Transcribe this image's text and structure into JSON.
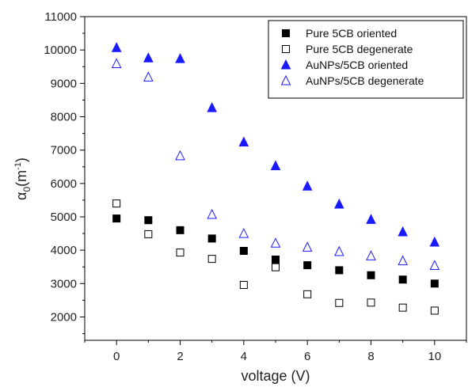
{
  "chart_data": {
    "type": "scatter",
    "title": "",
    "xlabel": "voltage (V)",
    "ylabel": {
      "alpha": "α",
      "sub": "0",
      "open": "(m",
      "sup": "-1",
      "close": ")"
    },
    "xlim": [
      -1,
      11
    ],
    "ylim": [
      1300,
      11000
    ],
    "x_ticks": [
      0,
      2,
      4,
      6,
      8,
      10
    ],
    "y_ticks": [
      2000,
      3000,
      4000,
      5000,
      6000,
      7000,
      8000,
      9000,
      10000,
      11000
    ],
    "grid": false,
    "legend_position": "top-right",
    "series": [
      {
        "name": "Pure 5CB oriented",
        "marker": "square-filled",
        "color": "#000000",
        "x": [
          0,
          1,
          2,
          3,
          4,
          5,
          6,
          7,
          8,
          9,
          10
        ],
        "y": [
          4950,
          4900,
          4600,
          4350,
          3980,
          3720,
          3550,
          3400,
          3250,
          3120,
          3000
        ]
      },
      {
        "name": "Pure 5CB degenerate",
        "marker": "square-open",
        "color": "#000000",
        "x": [
          0,
          1,
          2,
          3,
          4,
          5,
          6,
          7,
          8,
          9,
          10
        ],
        "y": [
          5400,
          4480,
          3930,
          3740,
          2960,
          3490,
          2680,
          2420,
          2430,
          2280,
          2190
        ]
      },
      {
        "name": "AuNPs/5CB oriented",
        "marker": "triangle-filled",
        "color": "#1a1aff",
        "x": [
          0,
          1,
          2,
          3,
          4,
          5,
          6,
          7,
          8,
          9,
          10
        ],
        "y": [
          10070,
          9760,
          9740,
          8270,
          7240,
          6530,
          5920,
          5380,
          4920,
          4550,
          4240
        ]
      },
      {
        "name": "AuNPs/5CB degenerate",
        "marker": "triangle-open",
        "color": "#1a1aff",
        "x": [
          0,
          1,
          2,
          3,
          4,
          5,
          6,
          7,
          8,
          9,
          10
        ],
        "y": [
          9590,
          9190,
          6830,
          5070,
          4500,
          4210,
          4090,
          3960,
          3830,
          3680,
          3540
        ]
      }
    ]
  }
}
